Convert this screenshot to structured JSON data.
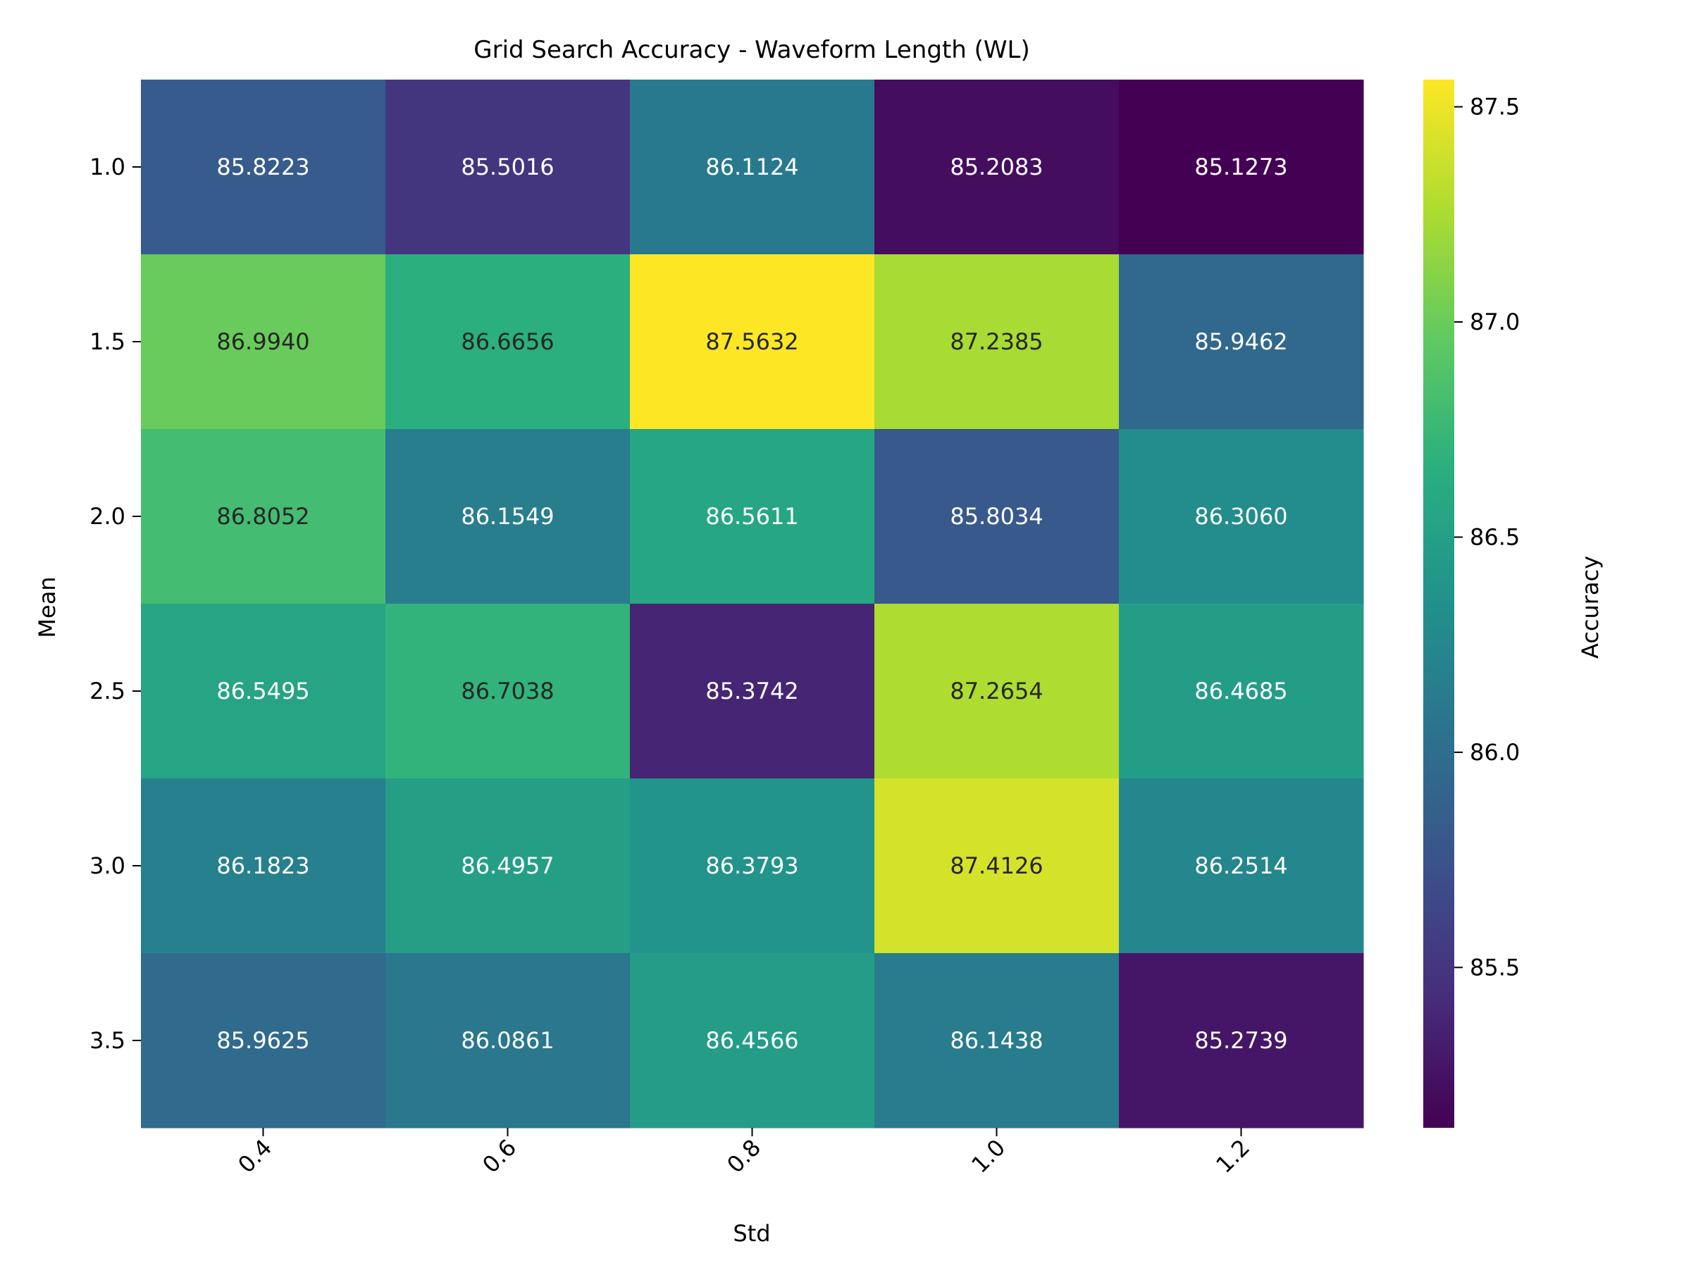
{
  "chart_data": {
    "type": "heatmap",
    "title": "Grid Search Accuracy - Waveform Length (WL)",
    "xlabel": "Std",
    "ylabel": "Mean",
    "x_categories": [
      "0.4",
      "0.6",
      "0.8",
      "1.0",
      "1.2"
    ],
    "y_categories": [
      "1.0",
      "1.5",
      "2.0",
      "2.5",
      "3.0",
      "3.5"
    ],
    "values": [
      [
        "85.8223",
        "85.5016",
        "86.1124",
        "85.2083",
        "85.1273"
      ],
      [
        "86.9940",
        "86.6656",
        "87.5632",
        "87.2385",
        "85.9462"
      ],
      [
        "86.8052",
        "86.1549",
        "86.5611",
        "85.8034",
        "86.3060"
      ],
      [
        "86.5495",
        "86.7038",
        "85.3742",
        "87.2654",
        "86.4685"
      ],
      [
        "86.1823",
        "86.4957",
        "86.3793",
        "87.4126",
        "86.2514"
      ],
      [
        "85.9625",
        "86.0861",
        "86.4566",
        "86.1438",
        "85.2739"
      ]
    ],
    "colormap": "viridis",
    "colorbar": {
      "label": "Accuracy",
      "min": 85.1273,
      "max": 87.5632,
      "ticks": [
        "85.5",
        "86.0",
        "86.5",
        "87.0",
        "87.5"
      ]
    }
  }
}
